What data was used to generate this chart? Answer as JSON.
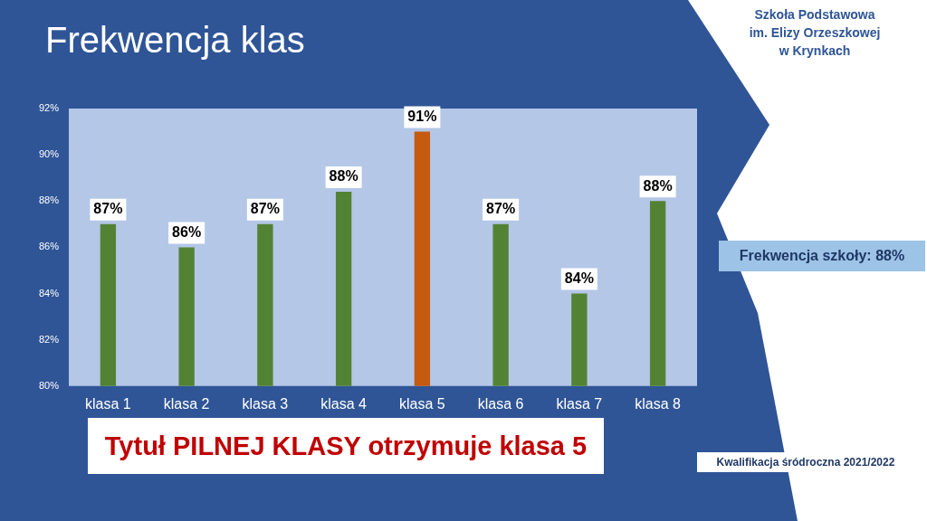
{
  "chart_data": {
    "type": "bar",
    "title": "Frekwencja klas",
    "categories": [
      "klasa 1",
      "klasa 2",
      "klasa 3",
      "klasa 4",
      "klasa 5",
      "klasa 6",
      "klasa 7",
      "klasa 8"
    ],
    "values": [
      87,
      86,
      87,
      88.4,
      91,
      87,
      84,
      88
    ],
    "value_labels": [
      "87%",
      "86%",
      "87%",
      "88%",
      "91%",
      "87%",
      "84%",
      "88%"
    ],
    "colors": [
      "#548235",
      "#548235",
      "#548235",
      "#548235",
      "#c55a11",
      "#548235",
      "#548235",
      "#548235"
    ],
    "ylim": [
      80,
      92
    ],
    "yticks": [
      {
        "value": 80,
        "label": "80%"
      },
      {
        "value": 82,
        "label": "82%"
      },
      {
        "value": 84,
        "label": "84%"
      },
      {
        "value": 86,
        "label": "86%"
      },
      {
        "value": 88,
        "label": "88%"
      },
      {
        "value": 90,
        "label": "90%"
      },
      {
        "value": 92,
        "label": "92%"
      }
    ],
    "annotations": [
      "Szkoła Podstawowa\nim. Elizy Orzeszkowej\nw Krynkach",
      "Frekwencja szkoły: 88%",
      "Tytuł PILNEJ KLASY otrzymuje klasa 5",
      "Kwalifikacja śródroczna 2021/2022"
    ]
  }
}
